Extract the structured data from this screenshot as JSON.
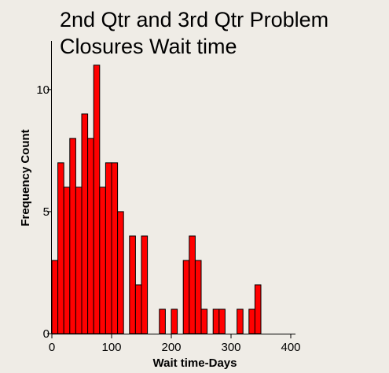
{
  "chart_data": {
    "type": "bar",
    "title": "2nd Qtr and 3rd Qtr Problem\nClosures Wait time",
    "xlabel": "Wait time-Days",
    "ylabel": "Frequency Count",
    "xlim": [
      0,
      400
    ],
    "ylim": [
      0,
      11.8
    ],
    "x_ticks": [
      0,
      100,
      200,
      300,
      400
    ],
    "y_ticks": [
      0,
      5,
      10
    ],
    "bin_width": 10,
    "colors": {
      "bar_fill": "#ff0000",
      "bar_stroke": "#000000",
      "axis": "#000000",
      "background": "#efece6"
    },
    "grid": false,
    "legend": "none",
    "bins": [
      {
        "x": 0,
        "count": 3
      },
      {
        "x": 10,
        "count": 7
      },
      {
        "x": 20,
        "count": 6
      },
      {
        "x": 30,
        "count": 8
      },
      {
        "x": 40,
        "count": 6
      },
      {
        "x": 50,
        "count": 9
      },
      {
        "x": 60,
        "count": 8
      },
      {
        "x": 70,
        "count": 11
      },
      {
        "x": 80,
        "count": 6
      },
      {
        "x": 90,
        "count": 7
      },
      {
        "x": 100,
        "count": 7
      },
      {
        "x": 110,
        "count": 5
      },
      {
        "x": 120,
        "count": 0
      },
      {
        "x": 130,
        "count": 4
      },
      {
        "x": 140,
        "count": 2
      },
      {
        "x": 150,
        "count": 4
      },
      {
        "x": 160,
        "count": 0
      },
      {
        "x": 170,
        "count": 0
      },
      {
        "x": 180,
        "count": 1
      },
      {
        "x": 190,
        "count": 0
      },
      {
        "x": 200,
        "count": 1
      },
      {
        "x": 210,
        "count": 0
      },
      {
        "x": 220,
        "count": 3
      },
      {
        "x": 230,
        "count": 4
      },
      {
        "x": 240,
        "count": 3
      },
      {
        "x": 250,
        "count": 1
      },
      {
        "x": 260,
        "count": 0
      },
      {
        "x": 270,
        "count": 1
      },
      {
        "x": 280,
        "count": 1
      },
      {
        "x": 290,
        "count": 0
      },
      {
        "x": 300,
        "count": 0
      },
      {
        "x": 310,
        "count": 1
      },
      {
        "x": 320,
        "count": 0
      },
      {
        "x": 330,
        "count": 1
      },
      {
        "x": 340,
        "count": 2
      }
    ]
  }
}
